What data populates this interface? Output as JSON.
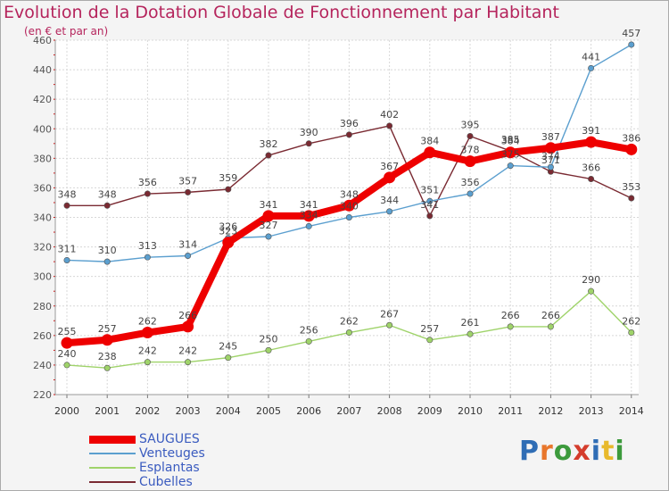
{
  "title": "Evolution de la Dotation Globale de Fonctionnement par Habitant",
  "subtitle": "(en € et par an)",
  "logo": {
    "text": "Proxiti",
    "letters": [
      "P",
      "r",
      "o",
      "x",
      "i",
      "t",
      "i"
    ],
    "colors": [
      "#2f6db5",
      "#e8762b",
      "#3c9a3c",
      "#d43c2c",
      "#2f6db5",
      "#e8b92b",
      "#3c9a3c"
    ]
  },
  "chart_data": {
    "type": "line",
    "title": "Evolution de la Dotation Globale de Fonctionnement par Habitant",
    "subtitle": "(en € et par an)",
    "xlabel": "",
    "ylabel": "",
    "ylim": [
      220,
      460
    ],
    "yticks": [
      220,
      240,
      260,
      280,
      300,
      320,
      340,
      360,
      380,
      400,
      420,
      440,
      460
    ],
    "grid": true,
    "legend_position": "bottom-left",
    "categories": [
      "2000",
      "2001",
      "2002",
      "2003",
      "2004",
      "2005",
      "2006",
      "2007",
      "2008",
      "2009",
      "2010",
      "2011",
      "2012",
      "2013",
      "2014"
    ],
    "series": [
      {
        "name": "SAUGUES",
        "color": "#ee0000",
        "values": [
          255,
          257,
          262,
          266,
          323,
          341,
          341,
          348,
          367,
          384,
          378,
          384,
          387,
          391,
          386
        ]
      },
      {
        "name": "Venteuges",
        "color": "#5b9fcf",
        "values": [
          311,
          310,
          313,
          314,
          326,
          327,
          334,
          340,
          344,
          351,
          356,
          375,
          374,
          441,
          457
        ]
      },
      {
        "name": "Esplantas",
        "color": "#9fd36a",
        "values": [
          240,
          238,
          242,
          242,
          245,
          250,
          256,
          262,
          267,
          257,
          261,
          266,
          266,
          290,
          262
        ]
      },
      {
        "name": "Cubelles",
        "color": "#7a2a32",
        "values": [
          348,
          348,
          356,
          357,
          359,
          382,
          390,
          396,
          402,
          341,
          395,
          385,
          371,
          366,
          353
        ]
      }
    ]
  }
}
